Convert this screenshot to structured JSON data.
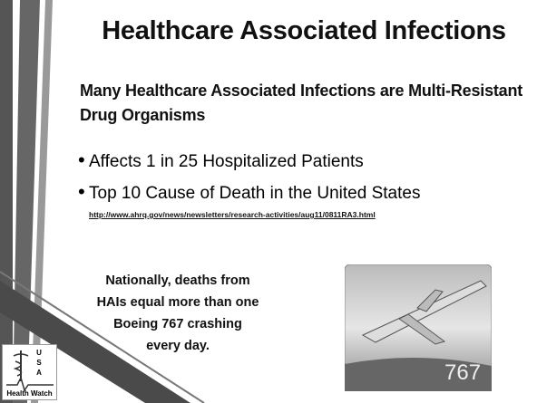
{
  "slide": {
    "title": "Healthcare Associated Infections",
    "subtitle": "Many Healthcare Associated Infections are Multi-Resistant Drug Organisms",
    "bullets": [
      "Affects 1 in 25 Hospitalized Patients",
      "Top 10 Cause of Death in the United States"
    ],
    "link": "http://www.ahrq.gov/news/newsletters/research-activities/aug11/0811RA3.html",
    "callout": "Nationally, deaths from HAIs equal more than one Boeing 767 crashing every day.",
    "image_label": "767",
    "logo": {
      "letters": "U S A",
      "name": "Health Watch"
    }
  }
}
